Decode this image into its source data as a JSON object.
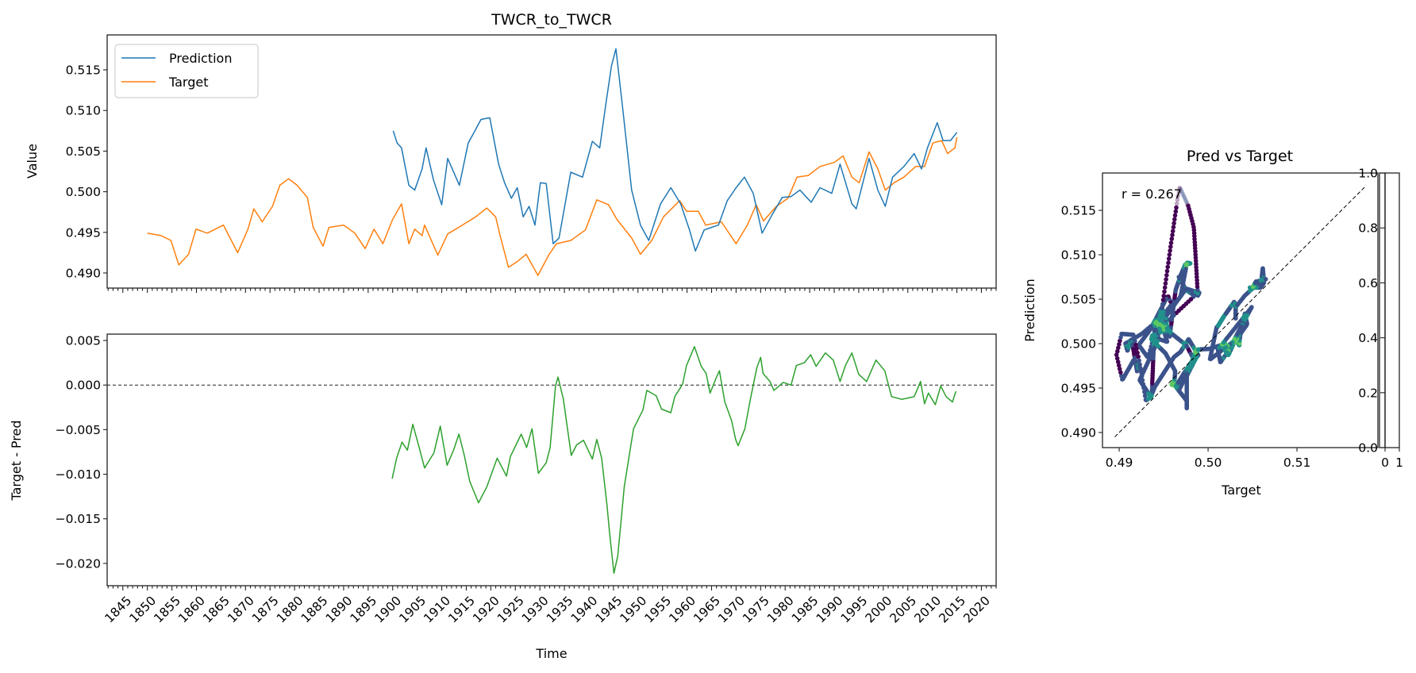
{
  "figure": {
    "main_title": "TWCR_to_TWCR",
    "scatter_title": "Pred vs Target"
  },
  "chart_data": [
    {
      "type": "line",
      "panel": "top",
      "title": "TWCR_to_TWCR",
      "xlabel": "",
      "ylabel": "Value",
      "xlim": [
        1841.8,
        2023.0
      ],
      "ylim": [
        0.48814,
        0.5193
      ],
      "yticks": [
        0.49,
        0.495,
        0.5,
        0.505,
        0.51,
        0.515
      ],
      "ytick_labels": [
        "0.490",
        "0.495",
        "0.500",
        "0.505",
        "0.510",
        "0.515"
      ],
      "legend": {
        "placement": "top-left",
        "entries": [
          "Prediction",
          "Target"
        ]
      },
      "grid": false,
      "series": [
        {
          "name": "Prediction",
          "color": "#1f77b4",
          "x": [
            1900.1,
            1900.9,
            1901.8,
            1903.3,
            1904.5,
            1906,
            1906.8,
            1908.3,
            1910,
            1911.2,
            1913.6,
            1915.4,
            1916.6,
            1918,
            1919.8,
            1921.6,
            1922.8,
            1924.2,
            1925.4,
            1926.6,
            1927.8,
            1929,
            1930.1,
            1931.3,
            1932.7,
            1933.9,
            1936.3,
            1938.7,
            1940.7,
            1942.2,
            1943.4,
            1944.6,
            1945.5,
            1946.9,
            1948.7,
            1950.5,
            1952.2,
            1954.6,
            1956.7,
            1958.7,
            1960.5,
            1961.7,
            1963.5,
            1966.4,
            1968.2,
            1970,
            1971.7,
            1973.5,
            1975.3,
            1977.1,
            1979.4,
            1981.2,
            1983,
            1985.3,
            1987.1,
            1989.5,
            1991.2,
            1993.6,
            1994.5,
            1997.1,
            1998.9,
            2000.4,
            2001.9,
            2004.2,
            2006.3,
            2007.8,
            2009,
            2011,
            2012.2,
            2013.7,
            2015
          ],
          "y": [
            0.5075,
            0.506,
            0.5054,
            0.5008,
            0.5002,
            0.5028,
            0.5054,
            0.5015,
            0.4984,
            0.5041,
            0.5008,
            0.506,
            0.5073,
            0.5089,
            0.5091,
            0.5034,
            0.5011,
            0.4992,
            0.5005,
            0.4969,
            0.4982,
            0.4959,
            0.5011,
            0.501,
            0.4936,
            0.4943,
            0.5024,
            0.5018,
            0.5062,
            0.5054,
            0.5106,
            0.5155,
            0.5176,
            0.5102,
            0.5002,
            0.4959,
            0.494,
            0.4985,
            0.5005,
            0.4985,
            0.4953,
            0.4927,
            0.4953,
            0.4959,
            0.4989,
            0.5005,
            0.5018,
            0.4998,
            0.4949,
            0.4969,
            0.4993,
            0.4994,
            0.5002,
            0.4987,
            0.5005,
            0.4998,
            0.5034,
            0.4985,
            0.4979,
            0.5041,
            0.5002,
            0.4982,
            0.5018,
            0.5031,
            0.5047,
            0.5028,
            0.5054,
            0.5085,
            0.5063,
            0.5063,
            0.5073
          ]
        },
        {
          "name": "Target",
          "color": "#ff7f0e",
          "x": [
            1850,
            1852.8,
            1854.8,
            1856.4,
            1858.4,
            1859.9,
            1862.2,
            1865.5,
            1868.4,
            1870.5,
            1871.7,
            1873.4,
            1875.5,
            1877,
            1878.8,
            1880.5,
            1882.6,
            1883.8,
            1885.8,
            1887,
            1890,
            1892.3,
            1894.4,
            1896.2,
            1898,
            1900,
            1901.8,
            1903.3,
            1904.5,
            1906,
            1906.5,
            1909.2,
            1911.2,
            1914.2,
            1916.9,
            1919.2,
            1921,
            1921.9,
            1923.6,
            1925.4,
            1927.2,
            1929.6,
            1931.9,
            1933.4,
            1936.3,
            1939.3,
            1941.6,
            1944,
            1945.7,
            1948.7,
            1950.5,
            1952.8,
            1955.2,
            1958.5,
            1959.9,
            1962.3,
            1963.8,
            1967,
            1970,
            1972.3,
            1974.1,
            1975.6,
            1978.2,
            1980.6,
            1982.4,
            1984.7,
            1987.1,
            1990,
            1991.8,
            1993.6,
            1995.1,
            1997.1,
            1998.9,
            2000.4,
            2002.2,
            2004.2,
            2006.6,
            2008.4,
            2010.1,
            2011.9,
            2013.1,
            2014.6,
            2015
          ],
          "y": [
            0.4949,
            0.4946,
            0.494,
            0.491,
            0.4923,
            0.4954,
            0.4949,
            0.4959,
            0.4925,
            0.4954,
            0.4979,
            0.4963,
            0.4982,
            0.5008,
            0.5016,
            0.5008,
            0.4993,
            0.4956,
            0.4933,
            0.4956,
            0.4959,
            0.4949,
            0.493,
            0.4954,
            0.4936,
            0.4966,
            0.4985,
            0.4936,
            0.4954,
            0.4946,
            0.4959,
            0.4922,
            0.4948,
            0.4959,
            0.4969,
            0.498,
            0.4969,
            0.4946,
            0.4907,
            0.4914,
            0.4923,
            0.4897,
            0.4923,
            0.4936,
            0.494,
            0.4953,
            0.499,
            0.4984,
            0.4966,
            0.4943,
            0.4923,
            0.494,
            0.4969,
            0.4989,
            0.4976,
            0.4976,
            0.4959,
            0.4963,
            0.4936,
            0.4959,
            0.4984,
            0.4964,
            0.4982,
            0.4992,
            0.5018,
            0.502,
            0.5031,
            0.5036,
            0.5044,
            0.5018,
            0.5011,
            0.5049,
            0.5028,
            0.5002,
            0.5011,
            0.5018,
            0.5031,
            0.5031,
            0.506,
            0.5063,
            0.5047,
            0.5054,
            0.5067
          ]
        }
      ]
    },
    {
      "type": "line",
      "panel": "bottom",
      "xlabel": "Time",
      "ylabel": "Target - Pred",
      "xlim": [
        1841.8,
        2023.0
      ],
      "ylim": [
        -0.0225,
        0.00571
      ],
      "xticks": [
        1845,
        1850,
        1855,
        1860,
        1865,
        1870,
        1875,
        1880,
        1885,
        1890,
        1895,
        1900,
        1905,
        1910,
        1915,
        1920,
        1925,
        1930,
        1935,
        1940,
        1945,
        1950,
        1955,
        1960,
        1965,
        1970,
        1975,
        1980,
        1985,
        1990,
        1995,
        2000,
        2005,
        2010,
        2015,
        2020
      ],
      "xtick_labels": [
        "1845",
        "1850",
        "1855",
        "1860",
        "1865",
        "1870",
        "1875",
        "1880",
        "1885",
        "1890",
        "1895",
        "1900",
        "1905",
        "1910",
        "1915",
        "1920",
        "1925",
        "1930",
        "1935",
        "1940",
        "1945",
        "1950",
        "1955",
        "1960",
        "1965",
        "1970",
        "1975",
        "1980",
        "1985",
        "1990",
        "1995",
        "2000",
        "2005",
        "2010",
        "2015",
        "2020"
      ],
      "yticks": [
        0.005,
        0.0,
        -0.005,
        -0.01,
        -0.015,
        -0.02
      ],
      "ytick_labels": [
        "0.005",
        "0.000",
        "−0.005",
        "−0.010",
        "−0.015",
        "−0.020"
      ],
      "reference_line": {
        "y": 0.0,
        "style": "dashed"
      },
      "grid": false,
      "series": [
        {
          "name": "Target - Pred",
          "color": "#2ca02c",
          "x": [
            1899.9,
            1900.8,
            1901.9,
            1903,
            1904.1,
            1905.4,
            1906.5,
            1908.4,
            1909.7,
            1911.1,
            1912.4,
            1913.5,
            1914.6,
            1915.7,
            1917.5,
            1919.2,
            1921.3,
            1923.2,
            1924,
            1926.2,
            1927.3,
            1928.4,
            1929.7,
            1931.3,
            1932.1,
            1933.2,
            1933.7,
            1934.8,
            1936.4,
            1937.5,
            1938.9,
            1940.7,
            1941.6,
            1942.6,
            1943.7,
            1944.2,
            1945.1,
            1945.9,
            1947.2,
            1948.3,
            1949.1,
            1951,
            1951.8,
            1953.7,
            1954.8,
            1956.7,
            1957.5,
            1959.1,
            1959.9,
            1961.5,
            1962.9,
            1963.9,
            1964.7,
            1966.1,
            1966.6,
            1967.7,
            1969.1,
            1969.9,
            1970.4,
            1971.8,
            1972.8,
            1974.2,
            1975,
            1975.5,
            1976.9,
            1977.7,
            1979.6,
            1981.2,
            1982.3,
            1983.9,
            1985.2,
            1986.3,
            1988.2,
            1989.8,
            1991.2,
            1992.3,
            1993.6,
            1995,
            1996.6,
            1998.5,
            2000.3,
            2001.7,
            2003.8,
            2006.3,
            2007.6,
            2008.4,
            2009.2,
            2010.6,
            2011.7,
            2012.8,
            2014.1,
            2014.8
          ],
          "y": [
            -0.0105,
            -0.0082,
            -0.0064,
            -0.0073,
            -0.0044,
            -0.007,
            -0.0093,
            -0.0076,
            -0.0046,
            -0.009,
            -0.0073,
            -0.0055,
            -0.0079,
            -0.0108,
            -0.0132,
            -0.0114,
            -0.0082,
            -0.0102,
            -0.008,
            -0.0055,
            -0.007,
            -0.0049,
            -0.0099,
            -0.0087,
            -0.007,
            -0.0001,
            0.0009,
            -0.0016,
            -0.0079,
            -0.0067,
            -0.0062,
            -0.0083,
            -0.0061,
            -0.0082,
            -0.0135,
            -0.0165,
            -0.0211,
            -0.0191,
            -0.0114,
            -0.0076,
            -0.0049,
            -0.0028,
            -0.0006,
            -0.0012,
            -0.0027,
            -0.0031,
            -0.0013,
            0.0001,
            0.0022,
            0.0043,
            0.0021,
            0.0013,
            -0.0009,
            0.001,
            0.0016,
            -0.0019,
            -0.004,
            -0.0061,
            -0.0068,
            -0.0049,
            -0.0019,
            0.0019,
            0.0031,
            0.0013,
            0.0004,
            -0.0006,
            0.0003,
            0.0,
            0.0022,
            0.0025,
            0.0034,
            0.0021,
            0.0036,
            0.0028,
            0.0004,
            0.0022,
            0.0036,
            0.0012,
            0.0004,
            0.0028,
            0.0016,
            -0.0013,
            -0.0016,
            -0.0013,
            0.0004,
            -0.0021,
            -0.0009,
            -0.0022,
            -0.0001,
            -0.0013,
            -0.0019,
            -0.0007
          ]
        }
      ]
    },
    {
      "type": "scatter",
      "panel": "scatter",
      "title": "Pred vs Target",
      "xlabel": "Target",
      "ylabel": "Prediction",
      "xlim": [
        0.48812,
        0.5191
      ],
      "ylim": [
        0.4883,
        0.5192
      ],
      "xticks": [
        0.49,
        0.5,
        0.51
      ],
      "xtick_labels": [
        "0.49",
        "0.50",
        "0.51"
      ],
      "yticks": [
        0.49,
        0.495,
        0.5,
        0.505,
        0.51,
        0.515
      ],
      "ytick_labels": [
        "0.490",
        "0.495",
        "0.500",
        "0.505",
        "0.510",
        "0.515"
      ],
      "annotation": "r = 0.267",
      "identity_line": {
        "from": 0.4895,
        "to": 0.5177,
        "style": "dashed"
      },
      "point_source": "Target (x) vs Prediction (y) over the overlapping period 1900-2015, coloured by point density",
      "colormap": [
        "#440154",
        "#3b528b",
        "#21918c",
        "#5ec962",
        "#fde725"
      ],
      "colorbar": {
        "yticks": [
          0.0,
          0.2,
          0.4,
          0.6,
          0.8,
          1.0
        ],
        "ytick_labels": [
          "0.0",
          "0.2",
          "0.4",
          "0.6",
          "0.8",
          "1.0"
        ],
        "xticks": [
          0,
          1
        ],
        "xtick_labels": [
          "0",
          "1"
        ]
      }
    }
  ]
}
